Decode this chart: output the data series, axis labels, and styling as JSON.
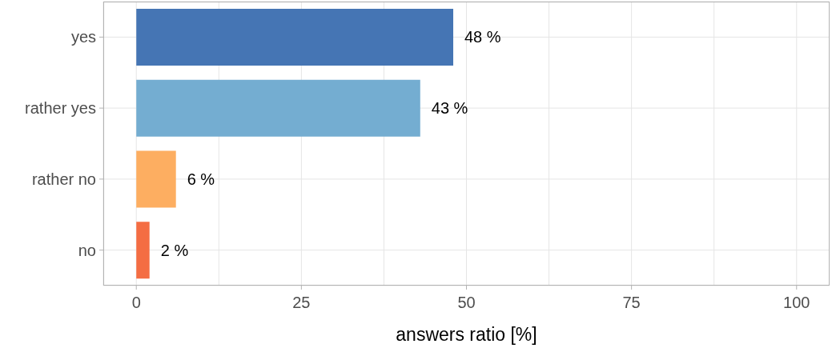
{
  "chart_data": {
    "type": "bar",
    "orientation": "horizontal",
    "categories": [
      "yes",
      "rather yes",
      "rather no",
      "no"
    ],
    "values": [
      48,
      43,
      6,
      2
    ],
    "colors": [
      "#4575b4",
      "#74add1",
      "#fdae61",
      "#f46d43"
    ],
    "value_labels": [
      "48 %",
      "43 %",
      "6 %",
      "2 %"
    ],
    "xlabel": "answers ratio [%]",
    "xlim": [
      -5,
      105
    ],
    "xticks": [
      0,
      {
        "value": 12.5,
        "label": null
      },
      25,
      {
        "value": 37.5,
        "label": null
      },
      50,
      {
        "value": 62.5,
        "label": null
      },
      75,
      {
        "value": 87.5,
        "label": null
      },
      100
    ],
    "grid": true
  }
}
